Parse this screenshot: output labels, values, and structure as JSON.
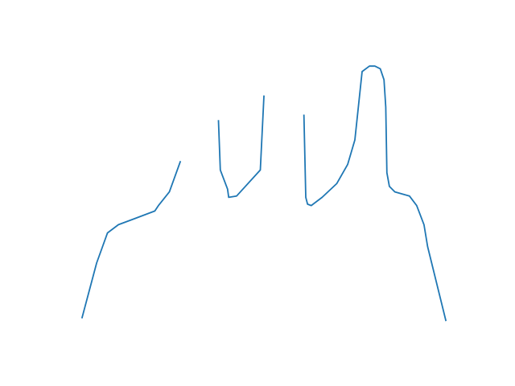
{
  "chart_data": {
    "type": "line",
    "title": "",
    "xlabel": "",
    "ylabel": "",
    "xlim": [
      0,
      100
    ],
    "ylim": [
      0,
      100
    ],
    "grid": false,
    "axes_visible": false,
    "series": [
      {
        "color": "#1f77b4",
        "segments": [
          [
            [
              0,
              5
            ],
            [
              4,
              25
            ],
            [
              7,
              36
            ],
            [
              10,
              39
            ],
            [
              14,
              41
            ],
            [
              20,
              44
            ],
            [
              21,
              46
            ],
            [
              24,
              51
            ],
            [
              27,
              62
            ]
          ],
          [
            [
              37.5,
              77
            ],
            [
              38,
              59
            ],
            [
              40,
              52
            ],
            [
              40.3,
              49
            ],
            [
              42.5,
              49.5
            ],
            [
              49,
              59
            ],
            [
              50,
              86
            ]
          ],
          [
            [
              61,
              79
            ],
            [
              61.5,
              49
            ],
            [
              62,
              46.5
            ],
            [
              63,
              46
            ],
            [
              66,
              49
            ],
            [
              70,
              54
            ],
            [
              73,
              61
            ],
            [
              75,
              70
            ],
            [
              77,
              95
            ],
            [
              79,
              97
            ],
            [
              80.5,
              97
            ],
            [
              82,
              96
            ],
            [
              83,
              92
            ],
            [
              83.5,
              82
            ],
            [
              83.8,
              58
            ],
            [
              84.5,
              53
            ],
            [
              86,
              51
            ],
            [
              90,
              49.5
            ],
            [
              92,
              46
            ],
            [
              94,
              39
            ],
            [
              95,
              31
            ],
            [
              100,
              4
            ]
          ]
        ]
      }
    ]
  }
}
